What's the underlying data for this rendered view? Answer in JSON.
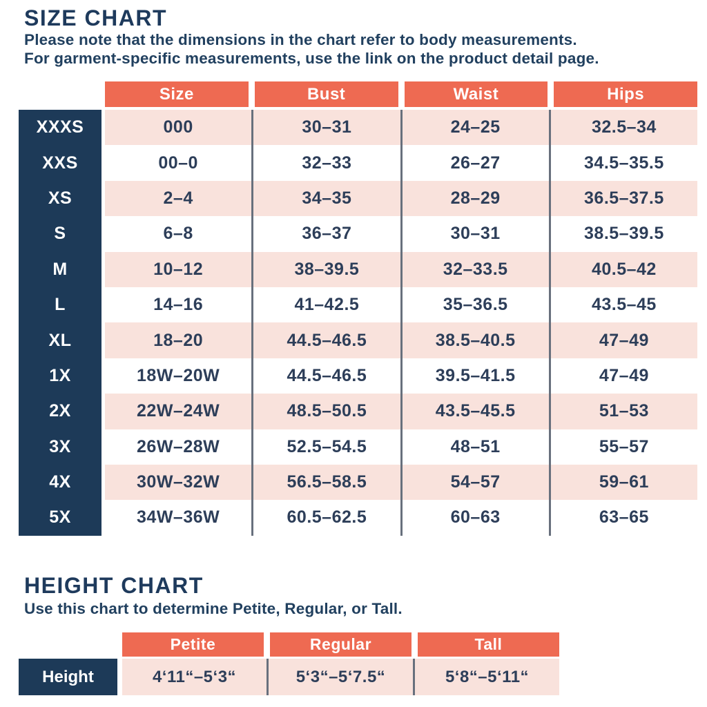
{
  "size_chart": {
    "title": "SIZE CHART",
    "note_line1": "Please note that the dimensions in the chart refer to body measurements.",
    "note_line2": "For garment-specific measurements, use the link on the product detail page.",
    "columns": [
      "Size",
      "Bust",
      "Waist",
      "Hips"
    ],
    "rows": [
      [
        "XXXS",
        "000",
        "30–31",
        "24–25",
        "32.5–34"
      ],
      [
        "XXS",
        "00–0",
        "32–33",
        "26–27",
        "34.5–35.5"
      ],
      [
        "XS",
        "2–4",
        "34–35",
        "28–29",
        "36.5–37.5"
      ],
      [
        "S",
        "6–8",
        "36–37",
        "30–31",
        "38.5–39.5"
      ],
      [
        "M",
        "10–12",
        "38–39.5",
        "32–33.5",
        "40.5–42"
      ],
      [
        "L",
        "14–16",
        "41–42.5",
        "35–36.5",
        "43.5–45"
      ],
      [
        "XL",
        "18–20",
        "44.5–46.5",
        "38.5–40.5",
        "47–49"
      ],
      [
        "1X",
        "18W–20W",
        "44.5–46.5",
        "39.5–41.5",
        "47–49"
      ],
      [
        "2X",
        "22W–24W",
        "48.5–50.5",
        "43.5–45.5",
        "51–53"
      ],
      [
        "3X",
        "26W–28W",
        "52.5–54.5",
        "48–51",
        "55–57"
      ],
      [
        "4X",
        "30W–32W",
        "56.5–58.5",
        "54–57",
        "59–61"
      ],
      [
        "5X",
        "34W–36W",
        "60.5–62.5",
        "60–63",
        "63–65"
      ]
    ]
  },
  "height_chart": {
    "title": "HEIGHT CHART",
    "note": "Use this chart to determine Petite, Regular, or Tall.",
    "columns": [
      "Petite",
      "Regular",
      "Tall"
    ],
    "row_label": "Height",
    "values": [
      "4‘11“–5‘3“",
      "5‘3“–5‘7.5“",
      "5‘8“–5‘11“"
    ]
  },
  "colors": {
    "accent_coral": "#ee6a52",
    "row_pink": "#f9e2dc",
    "label_navy": "#1d3a58",
    "text_navy": "#2d3e59",
    "divider_gray": "#68707d"
  }
}
